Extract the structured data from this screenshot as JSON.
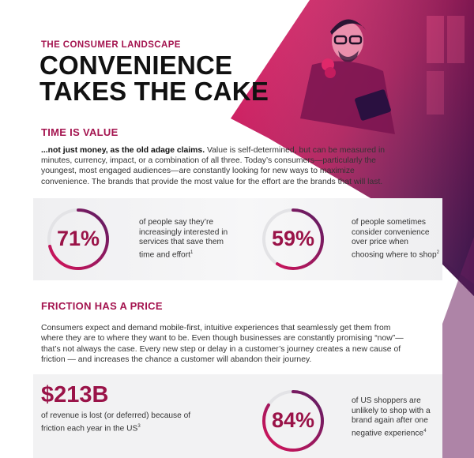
{
  "header": {
    "eyebrow": "THE CONSUMER LANDSCAPE",
    "title_line1": "CONVENIENCE",
    "title_line2": "TAKES THE CAKE"
  },
  "section1": {
    "heading": "TIME IS VALUE",
    "intro_bold": "...not just money, as the old adage claims.",
    "intro_rest": " Value is self-determined, but can be measured in minutes, currency, impact, or a combination of all three. Today’s consumers—particularly the youngest, most engaged audiences—are constantly looking for new ways to maximize convenience. The brands that provide the most value for the effort are the brands that will last."
  },
  "stats": [
    {
      "value": "71%",
      "percent": 71,
      "text": "of people say they’re increasingly interested in services that save them time and effort",
      "footnote": "1"
    },
    {
      "value": "59%",
      "percent": 59,
      "text": "of people sometimes consider convenience over price when choosing where to shop",
      "footnote": "2"
    }
  ],
  "section2": {
    "heading": "FRICTION HAS A PRICE",
    "body": "Consumers expect and demand mobile-first, intuitive experiences that seamlessly get them from where they are to where they want to be. Even though businesses are constantly promising “now”—that’s not always the case. Every new step or delay in a customer’s journey creates a new cause of friction — and increases the chance a customer will abandon their journey."
  },
  "friction_stats": {
    "money_value": "$213B",
    "money_text": "of revenue is lost (or deferred) because of friction each year in the US",
    "money_footnote": "3",
    "ring_value": "84%",
    "ring_percent": 84,
    "ring_text": "of US shoppers are unlikely to shop with a brand again after one negative experience",
    "ring_footnote": "4"
  },
  "colors": {
    "accent": "#a4144f",
    "ring_start": "#d8145a",
    "ring_end": "#5b1d63",
    "hero_dark": "#3a1b4f"
  }
}
